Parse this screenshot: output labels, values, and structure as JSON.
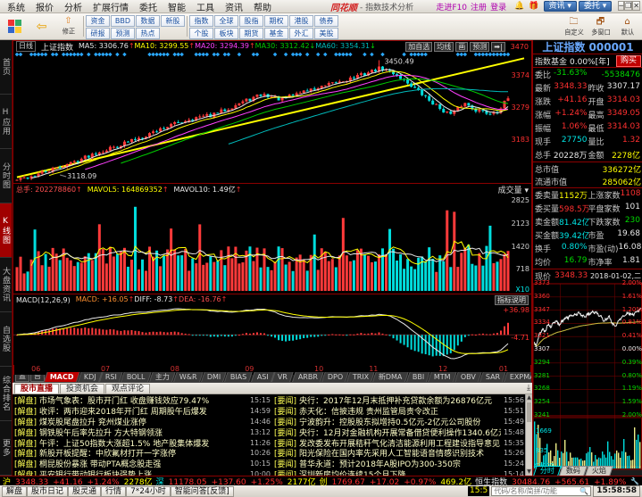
{
  "window": {
    "brand": "同花顺",
    "title_suffix": "- 指数技术分析",
    "menu": [
      "系统",
      "报价",
      "分析",
      "扩展行情",
      "委托",
      "智能",
      "工具",
      "资讯",
      "帮助"
    ],
    "links": [
      "走进F10",
      "注册",
      "登录"
    ],
    "icons": [
      "bell-icon",
      "gift-icon"
    ],
    "buttons": [
      "资讯",
      "委托"
    ],
    "win_controls": [
      "─",
      "❐",
      "✕"
    ]
  },
  "toolbar": {
    "items": [
      {
        "icon": "⇧",
        "label": "修正",
        "color": "#e08020"
      },
      {
        "icon": "⟳",
        "label": "删除",
        "color": "#e08020"
      },
      {
        "icon": "买",
        "label": "买入",
        "color": "#cc0000"
      },
      {
        "icon": "卖",
        "label": "卖出",
        "color": "#008800"
      },
      {
        "icon": "⚖",
        "label": "模拟",
        "color": "#8a6a00"
      },
      {
        "icon": "🔒",
        "label": "开户",
        "color": "#8a6a00"
      },
      {
        "icon": "📁",
        "label": "自选股",
        "color": "#3a6ea5"
      },
      {
        "icon": "🕐",
        "label": "周期",
        "color": "#3a6ea5"
      },
      {
        "icon": "🗔",
        "label": "F10/F9",
        "color": "#3a6ea5"
      },
      {
        "icon": "✎",
        "label": "画线",
        "color": "#3a6ea5"
      },
      {
        "icon": "🖵",
        "label": "选股",
        "color": "#3a6ea5"
      },
      {
        "icon": "讠",
        "label": "论股堂",
        "color": "#cc4400"
      },
      {
        "icon": "N",
        "label": "资讯",
        "color": "#1a50a0"
      }
    ],
    "text_buttons": [
      "资金",
      "研报",
      "BBD",
      "预测",
      "数据",
      "热点",
      "新股"
    ],
    "market_rows": [
      [
        "指数",
        "全球",
        "股指",
        "期权",
        "港股",
        "债券"
      ],
      [
        "个股",
        "板块",
        "期货",
        "基金",
        "外汇",
        "美股"
      ]
    ],
    "right_items": [
      {
        "icon": "🗀",
        "label": "自定义"
      },
      {
        "icon": "🗗",
        "label": "多窗口"
      },
      {
        "icon": "⌂",
        "label": "默认"
      }
    ]
  },
  "sidebar": {
    "items": [
      "首页",
      "H应用",
      "分时图",
      "K线图",
      "大盘资讯",
      "自选股",
      "综合排名",
      "更多"
    ],
    "active": "K线图"
  },
  "kline": {
    "period": "日线",
    "name": "上证指数",
    "ma": [
      {
        "t": "MA5: 3306.76",
        "c": "#e8e8e8",
        "a": "↑",
        "ac": "#ff3030"
      },
      {
        "t": "MA10: 3299.55",
        "c": "#ffff00",
        "a": "↑",
        "ac": "#ff3030"
      },
      {
        "t": "MA20: 3294.39",
        "c": "#ff40ff",
        "a": "↑",
        "ac": "#ff3030"
      },
      {
        "t": "MA30: 3312.42",
        "c": "#00cc00",
        "a": "↓",
        "ac": "#00d800"
      },
      {
        "t": "MA60: 3354.31",
        "c": "#00bbbb",
        "a": "↓",
        "ac": "#00d800"
      }
    ],
    "buttons": [
      "加自选",
      "均线",
      "画",
      "预测",
      "➡|"
    ],
    "axis_top": "3470",
    "axis_labels": [
      "3374",
      "3279",
      "3183"
    ],
    "peak_label": "3450.49",
    "low_label": "3118.09"
  },
  "volume": {
    "zongshou": "总手: 202278860",
    "mavol5": "MAVOL5: 164869352",
    "mavol10": "MAVOL10: 1.49亿",
    "dropdown": "成交量",
    "axis_labels": [
      "2825",
      "2123",
      "1420",
      "718"
    ],
    "x10": "X10"
  },
  "macd": {
    "title": "MACD(12,26,9)",
    "vals": [
      {
        "t": "MACD: +16.05",
        "c": "#ff9030",
        "a": "↑"
      },
      {
        "t": "DIFF: -8.73",
        "c": "#e8e8e8",
        "a": "↑"
      },
      {
        "t": "DEA: -16.76",
        "c": "#ff5050",
        "a": "↑"
      }
    ],
    "button": "指标说明",
    "axis_top": "+36.98",
    "axis_mid": "-4.71",
    "months": [
      "06",
      "07",
      "08",
      "09",
      "10",
      "11",
      "12",
      "01"
    ],
    "month_fracs": [
      0.02,
      0.16,
      0.3,
      0.45,
      0.59,
      0.7,
      0.84,
      0.962
    ]
  },
  "indicator_bar": {
    "left": [
      "设置",
      "指标平台"
    ],
    "tabs": [
      "MACD",
      "KDJ",
      "RSI",
      "BOLL",
      "主力",
      "W&R",
      "DMI",
      "BIAS",
      "ASI",
      "VR",
      "ARBR",
      "DPO",
      "TRIX",
      "新DMA",
      "BBI",
      "MTM",
      "OBV",
      "SAR",
      "EXPMA"
    ],
    "active": "MACD"
  },
  "news": {
    "tabs": [
      "股市直播",
      "投资机会",
      "观点评论"
    ],
    "active": "股市直播",
    "left": [
      {
        "tag": "[解盘]",
        "title": "市场气象表：股市开门红 收盘赚钱效应79.47%",
        "time": "15:15"
      },
      {
        "tag": "[解盘]",
        "title": "收评：两市迎来2018年开门红 周期股午后爆发",
        "time": "14:59"
      },
      {
        "tag": "[解盘]",
        "title": "煤炭股尾盘拉升 兖州煤业涨停",
        "time": "14:46"
      },
      {
        "tag": "[解盘]",
        "title": "钢铁股午后率先拉升 方大特钢领涨",
        "time": "13:12"
      },
      {
        "tag": "[解盘]",
        "title": "午评：上证50指数大涨超1.5% 地产股集体爆发",
        "time": "11:26"
      },
      {
        "tag": "[解盘]",
        "title": "新股开板提醒：中欣氟材打开一字涨停",
        "time": "10:26"
      },
      {
        "tag": "[解盘]",
        "title": "桐昆股份暴涨 带动PTA概念股走强",
        "time": "10:15"
      },
      {
        "tag": "[解盘]",
        "title": "平安银行带动银行板块强势上涨",
        "time": "10:00"
      }
    ],
    "right": [
      {
        "tag": "[要闻]",
        "title": "央行：2017年12月末抵押补充贷款余额为26876亿元",
        "time": "15:56"
      },
      {
        "tag": "[要闻]",
        "title": "赤天化：信披违规 贵州监管局责令改正",
        "time": "15:51"
      },
      {
        "tag": "[要闻]",
        "title": "宁波韵升：控股股东拟增持0.5亿元-2亿元公司股份",
        "time": "15:49"
      },
      {
        "tag": "[要闻]",
        "title": "央行：12月对金融机构开展常备借贷便利操作1340.6亿元",
        "time": "15:48"
      },
      {
        "tag": "[要闻]",
        "title": "发改委发布开展秸秆气化清洁能源利用工程建设指导意见",
        "time": "15:35"
      },
      {
        "tag": "[要闻]",
        "title": "阳光保险在国内率先采用人工智能语音情感识别技术",
        "time": "15:26"
      },
      {
        "tag": "[要闻]",
        "title": "普华永道：预计2018年A股IPO为300-350宗",
        "time": "15:24"
      },
      {
        "tag": "[要闻]",
        "title": "深圳新房均价连续15个月下降",
        "time": "15:14"
      }
    ]
  },
  "quote": {
    "title": "上证指数 000001",
    "fund_label": "指数基金",
    "fund_value": "0.00%[年]",
    "buy": "购买",
    "rows1": [
      {
        "l1": "委比",
        "v1": "-31.63%",
        "c1": "c-dn",
        "l2": "",
        "v2": "-5538476",
        "c2": "c-dn"
      },
      {
        "l1": "最新",
        "v1": "3348.33",
        "c1": "c-up",
        "l2": "昨收",
        "v2": "3307.17",
        "c2": "c-wh"
      },
      {
        "l1": "涨跌",
        "v1": "+41.16",
        "c1": "c-up",
        "l2": "开盘",
        "v2": "3314.03",
        "c2": "c-up"
      },
      {
        "l1": "涨幅",
        "v1": "+1.24%",
        "c1": "c-up",
        "l2": "最高",
        "v2": "3349.05",
        "c2": "c-up"
      },
      {
        "l1": "振幅",
        "v1": "1.06%",
        "c1": "c-up",
        "l2": "最低",
        "v2": "3314.03",
        "c2": "c-up"
      },
      {
        "l1": "现手",
        "v1": "27750",
        "c1": "c-cy",
        "l2": "量比",
        "v2": "1.32",
        "c2": "c-up"
      },
      {
        "l1": "总手",
        "v1": "20228万",
        "c1": "c-wh",
        "l2": "金额",
        "v2": "2278亿",
        "c2": "c-yl"
      }
    ],
    "caps": [
      {
        "l": "总市值",
        "v": "336272亿"
      },
      {
        "l": "流通市值",
        "v": "285062亿"
      }
    ],
    "rows2": [
      {
        "l1": "委卖量",
        "v1": "1152万",
        "c1": "c-yl",
        "l2": "上涨家数",
        "v2": "1108",
        "c2": "c-up"
      },
      {
        "l1": "委买量",
        "v1": "598.5万",
        "c1": "c-up",
        "l2": "平盘家数",
        "v2": "101",
        "c2": "c-wh"
      },
      {
        "l1": "卖金额",
        "v1": "81.42亿",
        "c1": "c-cy",
        "l2": "下跌家数",
        "v2": "230",
        "c2": "c-dn"
      },
      {
        "l1": "买金额",
        "v1": "39.42亿",
        "c1": "c-cy",
        "l2": "市盈",
        "v2": "19.68",
        "c2": "c-wh"
      },
      {
        "l1": "换手",
        "v1": "0.80%",
        "c1": "c-cy",
        "l2": "市盈(动)",
        "v2": "16.08",
        "c2": "c-wh"
      },
      {
        "l1": "均价",
        "v1": "16.79",
        "c1": "c-dn",
        "l2": "市净率",
        "v2": "1.81",
        "c2": "c-wh"
      }
    ],
    "price_label": "现价",
    "price": "3348.33",
    "date": "2018-01-02,二"
  },
  "mini": {
    "left_labels": [
      "3373",
      "3360",
      "3347",
      "3334",
      "3321",
      "3307",
      "3294",
      "3281",
      "3268",
      "3254",
      "3241"
    ],
    "right_labels": [
      "2.00%",
      "1.61%",
      "1.20%",
      "0.81%",
      "0.41%",
      "0.00%",
      "0.39%",
      "0.80%",
      "1.19%",
      "1.59%",
      "2.00%"
    ],
    "vol_labels": [
      "1669",
      "835"
    ],
    "x1000": "X1000",
    "tabs": [
      "分时",
      "数码",
      "火焰"
    ],
    "active_tab": "分时"
  },
  "bottom": {
    "indices": [
      {
        "label": "沪",
        "lc": "#ffff00",
        "price": "3348.33",
        "chg": "+41.16",
        "pct": "+1.24%",
        "amt": "2278亿"
      },
      {
        "label": "深",
        "lc": "#00e5e5",
        "price": "11178.05",
        "chg": "+137.60",
        "pct": "+1.25%",
        "amt": "2177亿"
      },
      {
        "label": "创",
        "lc": "#ffff00",
        "price": "1769.67",
        "chg": "+17.02",
        "pct": "+0.97%",
        "amt": "469.2亿"
      },
      {
        "label": "恒生指数",
        "lc": "#e8e8e8",
        "price": "30484.76",
        "chg": "+565.61",
        "pct": "+1.89%",
        "amt": ""
      }
    ],
    "tabs": [
      "解盘",
      "股市日记",
      "股灵通",
      "行情",
      "7*24小时",
      "智能问答[反馈]"
    ],
    "ticker_time": "15:5",
    "search_placeholder": "代码/名称/简拼/功能",
    "clock": "15:58:58"
  },
  "chart_data": [
    {
      "type": "candlestick",
      "title": "上证指数 000001 日线",
      "ylim": [
        3088,
        3478
      ],
      "axis_ticks": [
        3470,
        3374,
        3279,
        3183
      ],
      "x_months": [
        "06",
        "07",
        "08",
        "09",
        "10",
        "11",
        "12",
        "01"
      ],
      "close_anchors": [
        [
          0,
          3082
        ],
        [
          0.04,
          3100
        ],
        [
          0.08,
          3121
        ],
        [
          0.12,
          3145
        ],
        [
          0.16,
          3172
        ],
        [
          0.2,
          3192
        ],
        [
          0.25,
          3222
        ],
        [
          0.3,
          3255
        ],
        [
          0.35,
          3282
        ],
        [
          0.4,
          3295
        ],
        [
          0.45,
          3332
        ],
        [
          0.5,
          3362
        ],
        [
          0.54,
          3345
        ],
        [
          0.58,
          3372
        ],
        [
          0.62,
          3385
        ],
        [
          0.66,
          3405
        ],
        [
          0.7,
          3425
        ],
        [
          0.74,
          3448
        ],
        [
          0.77,
          3430
        ],
        [
          0.8,
          3395
        ],
        [
          0.83,
          3355
        ],
        [
          0.86,
          3318
        ],
        [
          0.885,
          3295
        ],
        [
          0.91,
          3335
        ],
        [
          0.935,
          3312
        ],
        [
          0.96,
          3300
        ],
        [
          0.98,
          3310
        ],
        [
          1,
          3348.33
        ]
      ],
      "trendline": [
        [
          0,
          3092
        ],
        [
          1,
          3480
        ]
      ],
      "peak": {
        "frac": 0.74,
        "value": 3450.49
      },
      "low": {
        "frac": 0.09,
        "value": 3118.09
      },
      "ma_values": {
        "MA5": 3306.76,
        "MA10": 3299.55,
        "MA20": 3294.39,
        "MA30": 3312.42,
        "MA60": 3354.31
      }
    },
    {
      "type": "bar",
      "title": "成交量 (X10)",
      "ylim": [
        0,
        3000
      ],
      "axis_ticks": [
        2825,
        2123,
        1420,
        718
      ],
      "latest": {
        "total": 202278860,
        "mavol5": 164869352,
        "mavol10": "1.49亿"
      }
    },
    {
      "type": "macd",
      "title": "MACD(12,26,9)",
      "latest": {
        "macd": 16.05,
        "diff": -8.73,
        "dea": -16.76
      },
      "axis_ticks": [
        36.98,
        -4.71
      ]
    },
    {
      "type": "line",
      "title": "分时 上证指数",
      "ylim": [
        3241,
        3373
      ],
      "baseline": 3307.17,
      "close": 3348.33,
      "anchors": [
        [
          0,
          3314
        ],
        [
          0.02,
          3311
        ],
        [
          0.05,
          3322
        ],
        [
          0.08,
          3328
        ],
        [
          0.1,
          3325
        ],
        [
          0.13,
          3332
        ],
        [
          0.16,
          3330
        ],
        [
          0.2,
          3336
        ],
        [
          0.24,
          3332
        ],
        [
          0.28,
          3338
        ],
        [
          0.33,
          3340
        ],
        [
          0.38,
          3342
        ],
        [
          0.42,
          3344
        ],
        [
          0.46,
          3340
        ],
        [
          0.5,
          3342
        ],
        [
          0.55,
          3345
        ],
        [
          0.6,
          3343
        ],
        [
          0.63,
          3339
        ],
        [
          0.66,
          3336
        ],
        [
          0.7,
          3340
        ],
        [
          0.73,
          3334
        ],
        [
          0.76,
          3330
        ],
        [
          0.8,
          3338
        ],
        [
          0.84,
          3341
        ],
        [
          0.88,
          3344
        ],
        [
          0.92,
          3342
        ],
        [
          0.96,
          3345
        ],
        [
          1,
          3348.33
        ]
      ],
      "vol_ticks": [
        1669,
        835
      ]
    }
  ]
}
